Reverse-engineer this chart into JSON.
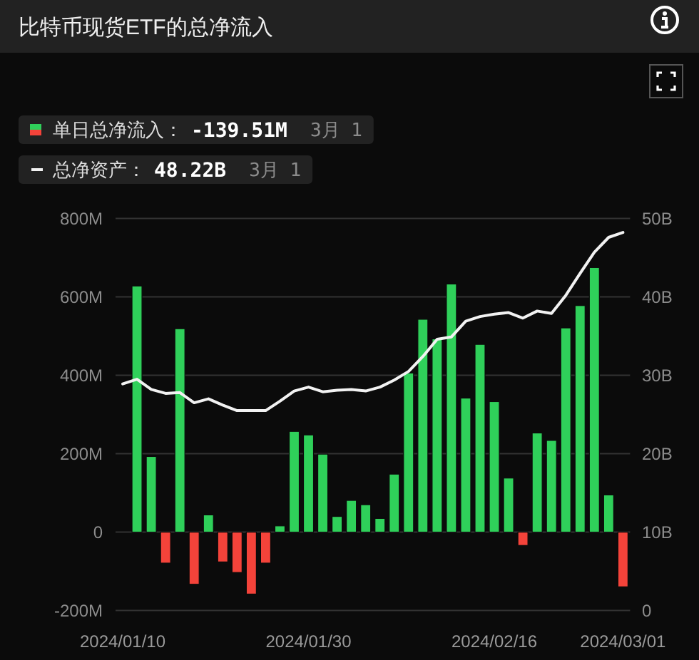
{
  "chart_data": {
    "type": "bar",
    "title": "比特币现货ETF的总净流入",
    "categories": [
      "2024/01/10",
      null,
      null,
      null,
      null,
      null,
      null,
      null,
      null,
      null,
      null,
      null,
      null,
      "2024/01/30",
      null,
      null,
      null,
      null,
      null,
      null,
      null,
      null,
      null,
      null,
      null,
      null,
      "2024/02/16",
      null,
      null,
      null,
      null,
      null,
      null,
      null,
      null,
      "2024/03/01"
    ],
    "series": [
      {
        "name": "单日总净流入：",
        "values": [
          null,
          628,
          193,
          -79,
          519,
          -133,
          44,
          -76,
          -103,
          -158,
          -79,
          16,
          257,
          248,
          199,
          40,
          81,
          70,
          35,
          148,
          406,
          543,
          493,
          633,
          342,
          479,
          333,
          138,
          -34,
          253,
          234,
          521,
          578,
          675,
          95,
          -139.51
        ],
        "colors": [
          null,
          "#2fd05a",
          "#2fd05a",
          "#f4433a",
          "#2fd05a",
          "#f4433a",
          "#2fd05a",
          "#f4433a",
          "#f4433a",
          "#f4433a",
          "#f4433a",
          "#2fd05a",
          "#2fd05a",
          "#2fd05a",
          "#2fd05a",
          "#2fd05a",
          "#2fd05a",
          "#2fd05a",
          "#2fd05a",
          "#2fd05a",
          "#2fd05a",
          "#2fd05a",
          "#2fd05a",
          "#2fd05a",
          "#2fd05a",
          "#2fd05a",
          "#2fd05a",
          "#2fd05a",
          "#f4433a",
          "#2fd05a",
          "#2fd05a",
          "#2fd05a",
          "#2fd05a",
          "#2fd05a",
          "#2fd05a",
          "#f4433a"
        ]
      },
      {
        "name": "总净资产：",
        "type": "line",
        "axis": "y2",
        "color": "#f2f2f2",
        "values": [
          28.9,
          29.5,
          28.2,
          27.7,
          27.8,
          26.5,
          27.0,
          26.2,
          25.5,
          25.5,
          25.5,
          26.7,
          28.0,
          28.5,
          27.9,
          28.1,
          28.2,
          28.0,
          28.5,
          29.4,
          30.5,
          32.4,
          34.6,
          34.9,
          36.9,
          37.5,
          37.8,
          38.0,
          37.3,
          38.2,
          37.9,
          40.2,
          43.0,
          45.7,
          47.6,
          48.22
        ]
      }
    ],
    "ylim": [
      -200,
      800
    ],
    "yticks": [
      {
        "value": -200,
        "label": "-200M"
      },
      0,
      {
        "value": 200,
        "label": "200M"
      },
      {
        "value": 400,
        "label": "400M"
      },
      {
        "value": 600,
        "label": "600M"
      },
      {
        "value": 800,
        "label": "800M"
      }
    ],
    "y2lim": [
      0,
      50
    ],
    "y2ticks": [
      0,
      {
        "value": 10,
        "label": "10B"
      },
      {
        "value": 20,
        "label": "20B"
      },
      {
        "value": 30,
        "label": "30B"
      },
      {
        "value": 40,
        "label": "40B"
      },
      {
        "value": 50,
        "label": "50B"
      }
    ],
    "grid": "y",
    "legend": "top left",
    "annotations": [
      "-139.51M",
      "3月 1",
      "48.22B",
      "3月 1"
    ]
  }
}
